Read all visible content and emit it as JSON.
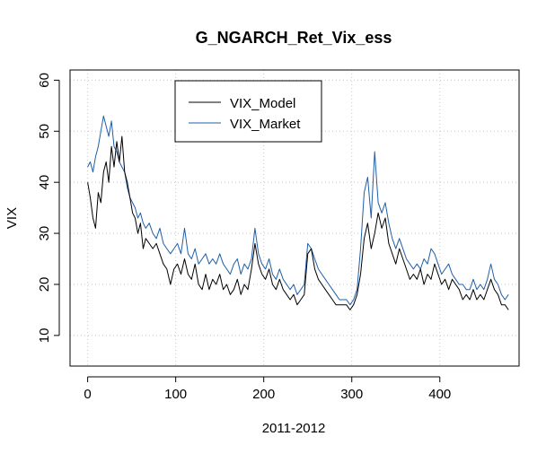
{
  "chart_data": {
    "type": "line",
    "title": "G_NGARCH_Ret_Vix_ess",
    "xlabel": "2011-2012",
    "ylabel": "VIX",
    "xlim": [
      -20,
      490
    ],
    "ylim": [
      4,
      62
    ],
    "xticks": [
      0,
      100,
      200,
      300,
      400
    ],
    "yticks": [
      10,
      20,
      30,
      40,
      50,
      60
    ],
    "grid": true,
    "legend_position": "top-left",
    "series": [
      {
        "name": "VIX_Model",
        "color": "#000000",
        "points": [
          [
            0,
            40
          ],
          [
            3,
            37
          ],
          [
            6,
            33
          ],
          [
            9,
            31
          ],
          [
            12,
            38
          ],
          [
            15,
            36
          ],
          [
            18,
            42
          ],
          [
            21,
            44
          ],
          [
            24,
            40
          ],
          [
            27,
            47
          ],
          [
            30,
            43
          ],
          [
            33,
            48
          ],
          [
            36,
            44
          ],
          [
            39,
            49
          ],
          [
            42,
            42
          ],
          [
            45,
            40
          ],
          [
            48,
            37
          ],
          [
            51,
            34
          ],
          [
            54,
            33
          ],
          [
            57,
            30
          ],
          [
            60,
            32
          ],
          [
            63,
            27
          ],
          [
            66,
            29
          ],
          [
            70,
            28
          ],
          [
            74,
            27
          ],
          [
            78,
            28
          ],
          [
            82,
            26
          ],
          [
            86,
            24
          ],
          [
            90,
            23
          ],
          [
            94,
            20
          ],
          [
            98,
            23
          ],
          [
            102,
            24
          ],
          [
            106,
            22
          ],
          [
            110,
            25
          ],
          [
            114,
            22
          ],
          [
            118,
            21
          ],
          [
            122,
            24
          ],
          [
            126,
            20
          ],
          [
            130,
            19
          ],
          [
            134,
            22
          ],
          [
            138,
            19
          ],
          [
            142,
            21
          ],
          [
            146,
            20
          ],
          [
            150,
            22
          ],
          [
            154,
            19
          ],
          [
            158,
            20
          ],
          [
            162,
            18
          ],
          [
            166,
            19
          ],
          [
            170,
            21
          ],
          [
            174,
            18
          ],
          [
            178,
            20
          ],
          [
            182,
            19
          ],
          [
            186,
            23
          ],
          [
            190,
            28
          ],
          [
            194,
            24
          ],
          [
            198,
            22
          ],
          [
            202,
            21
          ],
          [
            206,
            23
          ],
          [
            210,
            20
          ],
          [
            214,
            19
          ],
          [
            218,
            21
          ],
          [
            222,
            19
          ],
          [
            226,
            18
          ],
          [
            230,
            17
          ],
          [
            234,
            18
          ],
          [
            238,
            16
          ],
          [
            242,
            17
          ],
          [
            246,
            18
          ],
          [
            250,
            26
          ],
          [
            254,
            27
          ],
          [
            258,
            23
          ],
          [
            262,
            21
          ],
          [
            266,
            20
          ],
          [
            270,
            19
          ],
          [
            274,
            18
          ],
          [
            278,
            17
          ],
          [
            282,
            16
          ],
          [
            286,
            16
          ],
          [
            290,
            16
          ],
          [
            294,
            16
          ],
          [
            298,
            15
          ],
          [
            302,
            16
          ],
          [
            306,
            18
          ],
          [
            310,
            22
          ],
          [
            314,
            29
          ],
          [
            318,
            32
          ],
          [
            322,
            27
          ],
          [
            326,
            30
          ],
          [
            330,
            34
          ],
          [
            334,
            31
          ],
          [
            338,
            33
          ],
          [
            342,
            28
          ],
          [
            346,
            26
          ],
          [
            350,
            24
          ],
          [
            354,
            27
          ],
          [
            358,
            25
          ],
          [
            362,
            23
          ],
          [
            366,
            21
          ],
          [
            370,
            22
          ],
          [
            374,
            21
          ],
          [
            378,
            23
          ],
          [
            382,
            20
          ],
          [
            386,
            22
          ],
          [
            390,
            21
          ],
          [
            394,
            24
          ],
          [
            398,
            22
          ],
          [
            402,
            20
          ],
          [
            406,
            21
          ],
          [
            410,
            19
          ],
          [
            414,
            21
          ],
          [
            418,
            20
          ],
          [
            422,
            19
          ],
          [
            426,
            17
          ],
          [
            430,
            18
          ],
          [
            434,
            17
          ],
          [
            438,
            19
          ],
          [
            442,
            17
          ],
          [
            446,
            18
          ],
          [
            450,
            17
          ],
          [
            454,
            19
          ],
          [
            458,
            21
          ],
          [
            462,
            19
          ],
          [
            466,
            18
          ],
          [
            470,
            16
          ],
          [
            474,
            16
          ],
          [
            478,
            15
          ]
        ]
      },
      {
        "name": "VIX_Market",
        "color": "#1f5fa8",
        "points": [
          [
            0,
            43
          ],
          [
            3,
            44
          ],
          [
            6,
            42
          ],
          [
            9,
            45
          ],
          [
            12,
            47
          ],
          [
            15,
            50
          ],
          [
            18,
            53
          ],
          [
            21,
            51
          ],
          [
            24,
            49
          ],
          [
            27,
            52
          ],
          [
            30,
            47
          ],
          [
            33,
            46
          ],
          [
            36,
            44
          ],
          [
            39,
            43
          ],
          [
            42,
            42
          ],
          [
            45,
            39
          ],
          [
            48,
            37
          ],
          [
            51,
            36
          ],
          [
            54,
            35
          ],
          [
            57,
            33
          ],
          [
            60,
            34
          ],
          [
            63,
            32
          ],
          [
            66,
            31
          ],
          [
            70,
            32
          ],
          [
            74,
            30
          ],
          [
            78,
            29
          ],
          [
            82,
            31
          ],
          [
            86,
            28
          ],
          [
            90,
            27
          ],
          [
            94,
            26
          ],
          [
            98,
            27
          ],
          [
            102,
            28
          ],
          [
            106,
            26
          ],
          [
            110,
            31
          ],
          [
            114,
            26
          ],
          [
            118,
            25
          ],
          [
            122,
            27
          ],
          [
            126,
            24
          ],
          [
            130,
            25
          ],
          [
            134,
            26
          ],
          [
            138,
            24
          ],
          [
            142,
            25
          ],
          [
            146,
            24
          ],
          [
            150,
            26
          ],
          [
            154,
            24
          ],
          [
            158,
            23
          ],
          [
            162,
            22
          ],
          [
            166,
            24
          ],
          [
            170,
            25
          ],
          [
            174,
            22
          ],
          [
            178,
            24
          ],
          [
            182,
            23
          ],
          [
            186,
            25
          ],
          [
            190,
            31
          ],
          [
            194,
            26
          ],
          [
            198,
            24
          ],
          [
            202,
            23
          ],
          [
            206,
            25
          ],
          [
            210,
            22
          ],
          [
            214,
            21
          ],
          [
            218,
            23
          ],
          [
            222,
            21
          ],
          [
            226,
            20
          ],
          [
            230,
            19
          ],
          [
            234,
            20
          ],
          [
            238,
            18
          ],
          [
            242,
            19
          ],
          [
            246,
            20
          ],
          [
            250,
            28
          ],
          [
            254,
            27
          ],
          [
            258,
            25
          ],
          [
            262,
            23
          ],
          [
            266,
            22
          ],
          [
            270,
            21
          ],
          [
            274,
            20
          ],
          [
            278,
            19
          ],
          [
            282,
            18
          ],
          [
            286,
            17
          ],
          [
            290,
            17
          ],
          [
            294,
            17
          ],
          [
            298,
            16
          ],
          [
            302,
            17
          ],
          [
            306,
            19
          ],
          [
            310,
            27
          ],
          [
            314,
            38
          ],
          [
            318,
            41
          ],
          [
            322,
            33
          ],
          [
            326,
            46
          ],
          [
            330,
            36
          ],
          [
            334,
            34
          ],
          [
            338,
            36
          ],
          [
            342,
            32
          ],
          [
            346,
            29
          ],
          [
            350,
            27
          ],
          [
            354,
            29
          ],
          [
            358,
            27
          ],
          [
            362,
            25
          ],
          [
            366,
            24
          ],
          [
            370,
            23
          ],
          [
            374,
            24
          ],
          [
            378,
            23
          ],
          [
            382,
            25
          ],
          [
            386,
            24
          ],
          [
            390,
            27
          ],
          [
            394,
            26
          ],
          [
            398,
            24
          ],
          [
            402,
            22
          ],
          [
            406,
            23
          ],
          [
            410,
            24
          ],
          [
            414,
            22
          ],
          [
            418,
            21
          ],
          [
            422,
            20
          ],
          [
            426,
            20
          ],
          [
            430,
            19
          ],
          [
            434,
            19
          ],
          [
            438,
            21
          ],
          [
            442,
            19
          ],
          [
            446,
            20
          ],
          [
            450,
            19
          ],
          [
            454,
            21
          ],
          [
            458,
            24
          ],
          [
            462,
            21
          ],
          [
            466,
            20
          ],
          [
            470,
            18
          ],
          [
            474,
            17
          ],
          [
            478,
            18
          ]
        ]
      }
    ]
  }
}
